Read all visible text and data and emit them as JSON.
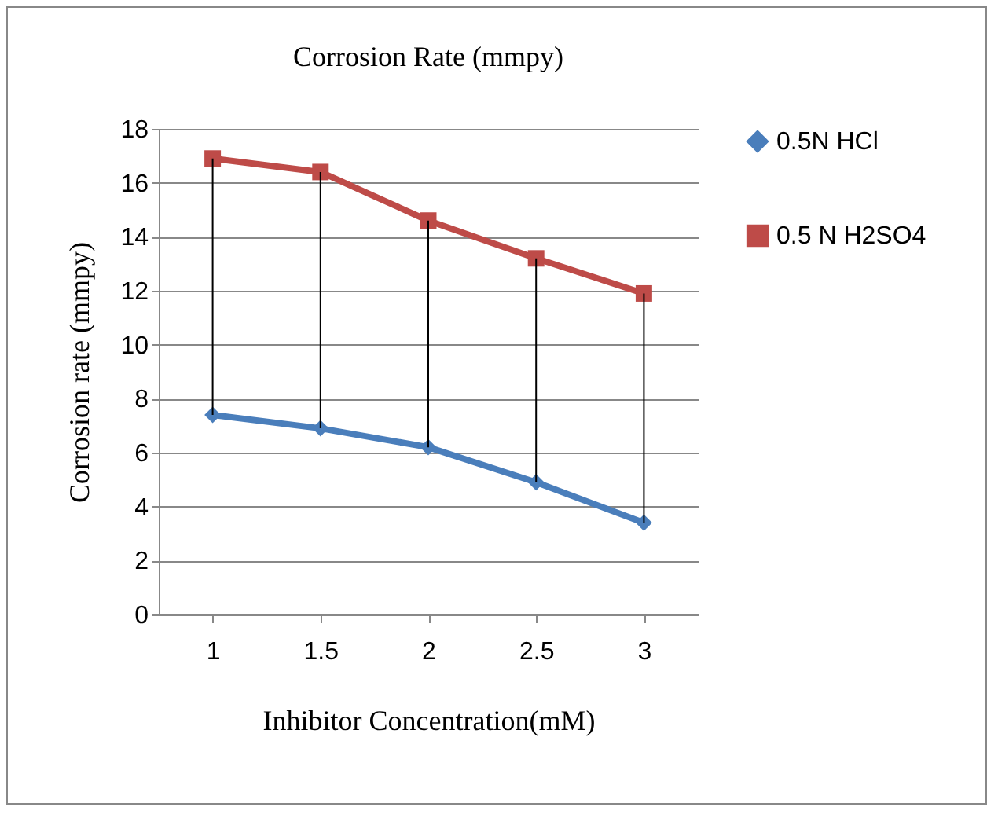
{
  "chart_data": {
    "type": "line",
    "title": "Corrosion Rate (mmpy)",
    "xlabel": "Inhibitor Concentration(mM)",
    "ylabel": "Corrosion rate (mmpy)",
    "categories": [
      "1",
      "1.5",
      "2",
      "2.5",
      "3"
    ],
    "series": [
      {
        "name": "0.5N HCl",
        "color": "#4a7ebb",
        "marker": "diamond",
        "values": [
          7.4,
          6.9,
          6.2,
          4.9,
          3.4
        ]
      },
      {
        "name": "0.5 N H2SO4",
        "color": "#be4b48",
        "marker": "square",
        "values": [
          16.9,
          16.4,
          14.6,
          13.2,
          11.9
        ]
      },
      {
        "color": "#000000",
        "marker": "none",
        "x": [
          "1",
          "1"
        ],
        "values": [
          7.4,
          16.9
        ]
      },
      {
        "color": "#000000",
        "marker": "none",
        "x": [
          "1.5",
          "1.5"
        ],
        "values": [
          6.9,
          16.4
        ]
      },
      {
        "color": "#000000",
        "marker": "none",
        "x": [
          "2",
          "2"
        ],
        "values": [
          6.2,
          14.6
        ]
      },
      {
        "color": "#000000",
        "marker": "none",
        "x": [
          "2.5",
          "2.5"
        ],
        "values": [
          4.9,
          13.2
        ]
      },
      {
        "color": "#000000",
        "marker": "none",
        "x": [
          "3",
          "3"
        ],
        "values": [
          3.4,
          11.9
        ]
      }
    ],
    "ylim": [
      0,
      18
    ],
    "yticks": [
      0,
      2,
      4,
      6,
      8,
      10,
      12,
      14,
      16,
      18
    ],
    "grid": "y",
    "legend": "right"
  }
}
